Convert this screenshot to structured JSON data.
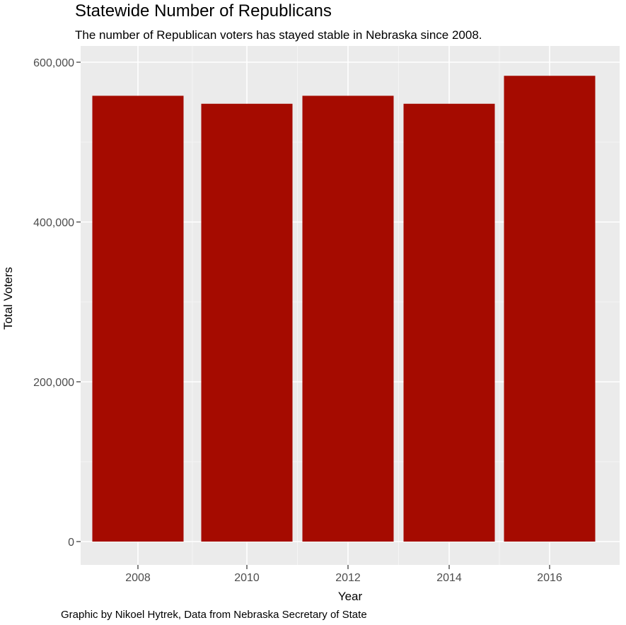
{
  "title": "Statewide Number of Republicans",
  "subtitle": "The number of Republican voters has stayed stable in Nebraska since 2008.",
  "caption": "Graphic by Nikoel Hytrek, Data from Nebraska Secretary of State",
  "colors": {
    "bar": "#a50b00",
    "panel": "#ebebeb",
    "grid_major": "#ffffff",
    "grid_minor": "#f5f5f5",
    "tick_text": "#4d4d4d"
  },
  "chart_data": {
    "type": "bar",
    "categories": [
      "2008",
      "2010",
      "2012",
      "2014",
      "2016"
    ],
    "x": [
      2008,
      2010,
      2012,
      2014,
      2016
    ],
    "values": [
      558000,
      548000,
      558000,
      548000,
      583000
    ],
    "xlabel": "Year",
    "ylabel": "Total Voters",
    "ylim": [
      0,
      600000
    ],
    "y_ticks": [
      0,
      200000,
      400000,
      600000
    ],
    "y_tick_labels": [
      "0",
      "200,000",
      "400,000",
      "600,000"
    ],
    "x_tick_labels": [
      "2008",
      "2010",
      "2012",
      "2014",
      "2016"
    ],
    "grid": true,
    "legend": "none"
  }
}
